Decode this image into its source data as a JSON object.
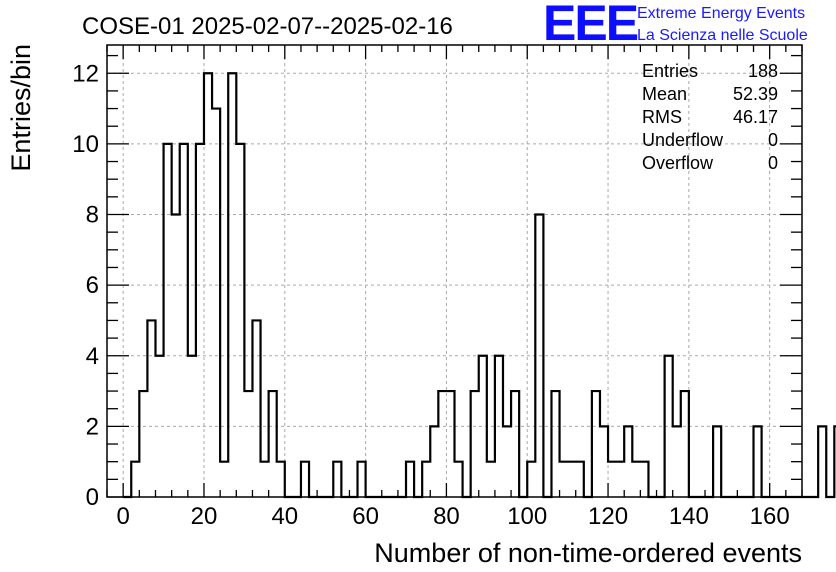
{
  "chart_data": {
    "type": "histogram",
    "title": "COSE-01 2025-02-07--2025-02-16",
    "xlabel": "Number of non-time-ordered events",
    "ylabel": "Entries/bin",
    "xlim": [
      -4,
      168
    ],
    "ylim": [
      0,
      12.8
    ],
    "xticks": [
      0,
      20,
      40,
      60,
      80,
      100,
      120,
      140,
      160
    ],
    "yticks": [
      0,
      2,
      4,
      6,
      8,
      10,
      12
    ],
    "grid": true,
    "bin_width": 2,
    "bins_start": 0,
    "values": [
      0,
      1,
      3,
      5,
      4,
      10,
      8,
      10,
      4,
      10,
      12,
      11,
      1,
      12,
      10,
      3,
      5,
      1,
      3,
      1,
      0,
      0,
      1,
      0,
      0,
      0,
      1,
      0,
      0,
      1,
      0,
      0,
      0,
      0,
      0,
      1,
      0,
      1,
      2,
      3,
      3,
      1,
      0,
      3,
      4,
      1,
      4,
      2,
      3,
      0,
      1,
      8,
      0,
      3,
      1,
      1,
      1,
      0,
      3,
      2,
      1,
      1,
      2,
      1,
      1,
      0,
      0,
      4,
      2,
      3,
      0,
      0,
      0,
      2,
      0,
      0,
      0,
      0,
      2,
      0,
      0,
      0,
      0,
      0,
      0,
      0,
      2,
      0,
      2,
      0
    ],
    "stats": [
      {
        "label": "Entries",
        "value": "188"
      },
      {
        "label": "Mean",
        "value": "52.39"
      },
      {
        "label": "RMS",
        "value": "46.17"
      },
      {
        "label": "Underflow",
        "value": "0"
      },
      {
        "label": "Overflow",
        "value": "0"
      }
    ],
    "line_color": "#000000"
  },
  "logo": {
    "mark": "EEE",
    "line1": "Extreme Energy Events",
    "line2": "La Scienza nelle Scuole",
    "color": "#0d0dff"
  }
}
